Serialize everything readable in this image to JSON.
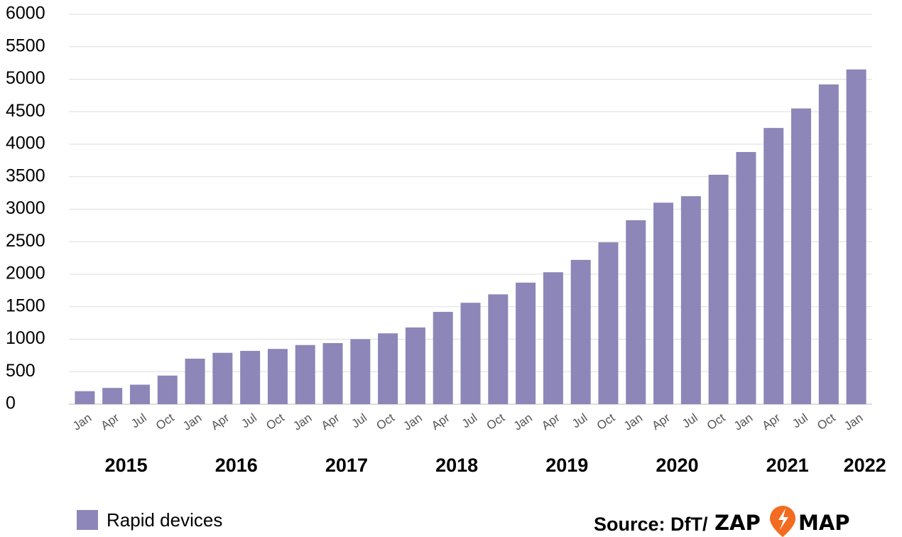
{
  "chart_data": {
    "type": "bar",
    "categories": [
      "Jan",
      "Apr",
      "Jul",
      "Oct",
      "Jan",
      "Apr",
      "Jul",
      "Oct",
      "Jan",
      "Apr",
      "Jul",
      "Oct",
      "Jan",
      "Apr",
      "Jul",
      "Oct",
      "Jan",
      "Apr",
      "Jul",
      "Oct",
      "Jan",
      "Apr",
      "Jul",
      "Oct",
      "Jan",
      "Apr",
      "Jul",
      "Oct",
      "Jan"
    ],
    "years": [
      "2015",
      "2016",
      "2017",
      "2018",
      "2019",
      "2020",
      "2021",
      "2022"
    ],
    "series": [
      {
        "name": "Rapid devices",
        "color": "#8d86b8",
        "values": [
          200,
          250,
          300,
          440,
          700,
          790,
          820,
          850,
          910,
          940,
          1000,
          1090,
          1180,
          1420,
          1560,
          1690,
          1870,
          2030,
          2220,
          2490,
          2830,
          3100,
          3200,
          3530,
          3880,
          4250,
          4550,
          4920,
          5150
        ]
      }
    ],
    "ylim": [
      0,
      6000
    ],
    "yticks": [
      0,
      500,
      1000,
      1500,
      2000,
      2500,
      3000,
      3500,
      4000,
      4500,
      5000,
      5500,
      6000
    ],
    "grid": true,
    "source": "Source: DfT/",
    "source_logo": [
      "ZAP",
      "MAP"
    ]
  }
}
